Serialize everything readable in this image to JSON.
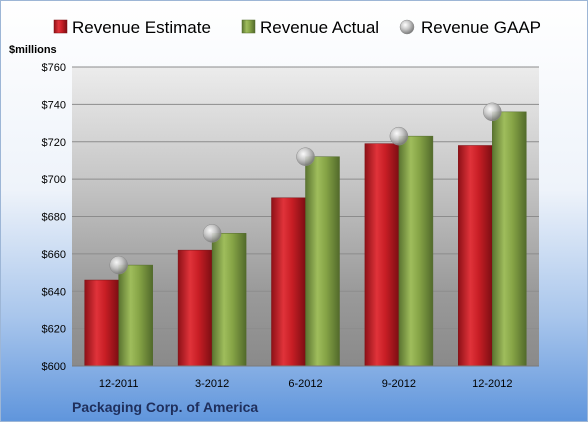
{
  "chart_data": {
    "type": "bar",
    "title": "",
    "xlabel": "",
    "ylabel": "$millions",
    "company": "Packaging Corp. of America",
    "categories": [
      "12-2011",
      "3-2012",
      "6-2012",
      "9-2012",
      "12-2012"
    ],
    "ylim": [
      600,
      760
    ],
    "yticks": [
      "$600",
      "$620",
      "$640",
      "$660",
      "$680",
      "$700",
      "$720",
      "$740",
      "$760"
    ],
    "ytick_values": [
      600,
      620,
      640,
      660,
      680,
      700,
      720,
      740,
      760
    ],
    "grid": true,
    "legend_position": "top",
    "series": [
      {
        "name": "Revenue Estimate",
        "kind": "bar",
        "color": "#cc2027",
        "values": [
          646,
          662,
          690,
          719,
          718
        ]
      },
      {
        "name": "Revenue Actual",
        "kind": "bar",
        "color": "#8aa84a",
        "values": [
          654,
          671,
          712,
          723,
          736
        ]
      },
      {
        "name": "Revenue GAAP",
        "kind": "marker",
        "color": "#b8b8b8",
        "values": [
          654,
          671,
          712,
          723,
          736
        ]
      }
    ]
  }
}
